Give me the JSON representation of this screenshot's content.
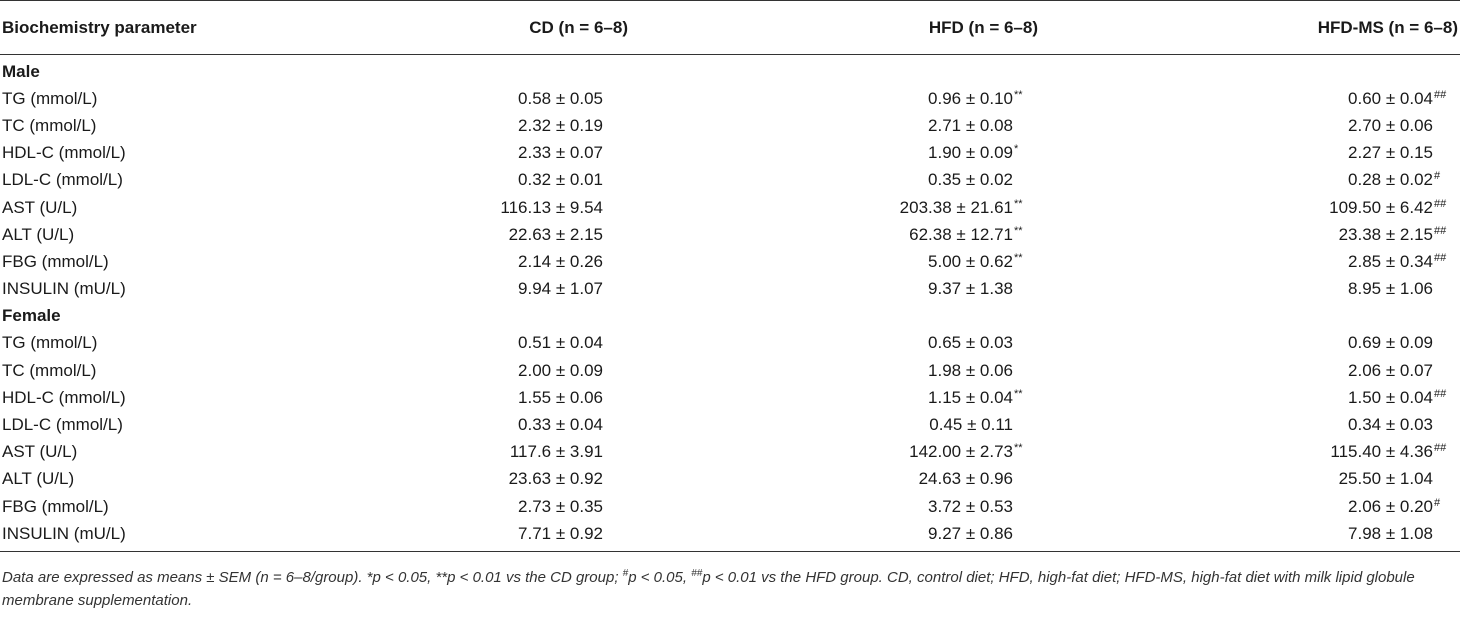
{
  "table": {
    "headers": [
      "Biochemistry parameter",
      "CD (n = 6–8)",
      "HFD (n = 6–8)",
      "HFD-MS (n = 6–8)"
    ],
    "sections": [
      {
        "label": "Male",
        "rows": [
          {
            "param": "TG (mmol/L)",
            "cd": "0.58 ± 0.05",
            "cd_m": "",
            "hfd": "0.96 ± 0.10",
            "hfd_m": "**",
            "hfdms": "0.60 ± 0.04",
            "hfdms_m": "##"
          },
          {
            "param": "TC (mmol/L)",
            "cd": "2.32 ± 0.19",
            "cd_m": "",
            "hfd": "2.71 ± 0.08",
            "hfd_m": "",
            "hfdms": "2.70 ± 0.06",
            "hfdms_m": ""
          },
          {
            "param": "HDL-C (mmol/L)",
            "cd": "2.33 ± 0.07",
            "cd_m": "",
            "hfd": "1.90 ± 0.09",
            "hfd_m": "*",
            "hfdms": "2.27 ± 0.15",
            "hfdms_m": ""
          },
          {
            "param": "LDL-C (mmol/L)",
            "cd": "0.32 ± 0.01",
            "cd_m": "",
            "hfd": "0.35 ± 0.02",
            "hfd_m": "",
            "hfdms": "0.28 ± 0.02",
            "hfdms_m": "#"
          },
          {
            "param": "AST (U/L)",
            "cd": "116.13 ± 9.54",
            "cd_m": "",
            "hfd": "203.38 ± 21.61",
            "hfd_m": "**",
            "hfdms": "109.50 ± 6.42",
            "hfdms_m": "##"
          },
          {
            "param": "ALT (U/L)",
            "cd": "22.63 ± 2.15",
            "cd_m": "",
            "hfd": "62.38 ± 12.71",
            "hfd_m": "**",
            "hfdms": "23.38 ± 2.15",
            "hfdms_m": "##"
          },
          {
            "param": "FBG (mmol/L)",
            "cd": "2.14 ± 0.26",
            "cd_m": "",
            "hfd": "5.00 ± 0.62",
            "hfd_m": "**",
            "hfdms": "2.85 ± 0.34",
            "hfdms_m": "##"
          },
          {
            "param": "INSULIN (mU/L)",
            "cd": "9.94 ± 1.07",
            "cd_m": "",
            "hfd": "9.37 ± 1.38",
            "hfd_m": "",
            "hfdms": "8.95 ± 1.06",
            "hfdms_m": ""
          }
        ]
      },
      {
        "label": "Female",
        "rows": [
          {
            "param": "TG (mmol/L)",
            "cd": "0.51 ± 0.04",
            "cd_m": "",
            "hfd": "0.65 ± 0.03",
            "hfd_m": "",
            "hfdms": "0.69 ± 0.09",
            "hfdms_m": ""
          },
          {
            "param": "TC (mmol/L)",
            "cd": "2.00 ± 0.09",
            "cd_m": "",
            "hfd": "1.98 ± 0.06",
            "hfd_m": "",
            "hfdms": "2.06 ± 0.07",
            "hfdms_m": ""
          },
          {
            "param": "HDL-C (mmol/L)",
            "cd": "1.55 ± 0.06",
            "cd_m": "",
            "hfd": "1.15 ± 0.04",
            "hfd_m": "**",
            "hfdms": "1.50 ± 0.04",
            "hfdms_m": "##"
          },
          {
            "param": "LDL-C (mmol/L)",
            "cd": "0.33 ± 0.04",
            "cd_m": "",
            "hfd": "0.45 ± 0.11",
            "hfd_m": "",
            "hfdms": "0.34 ± 0.03",
            "hfdms_m": ""
          },
          {
            "param": "AST (U/L)",
            "cd": "117.6 ± 3.91",
            "cd_m": "",
            "hfd": "142.00 ± 2.73",
            "hfd_m": "**",
            "hfdms": "115.40 ± 4.36",
            "hfdms_m": "##"
          },
          {
            "param": "ALT (U/L)",
            "cd": "23.63 ± 0.92",
            "cd_m": "",
            "hfd": "24.63 ± 0.96",
            "hfd_m": "",
            "hfdms": "25.50 ± 1.04",
            "hfdms_m": ""
          },
          {
            "param": "FBG (mmol/L)",
            "cd": "2.73 ± 0.35",
            "cd_m": "",
            "hfd": "3.72 ± 0.53",
            "hfd_m": "",
            "hfdms": "2.06 ± 0.20",
            "hfdms_m": "#"
          },
          {
            "param": "INSULIN (mU/L)",
            "cd": "7.71 ± 0.92",
            "cd_m": "",
            "hfd": "9.27 ± 0.86",
            "hfd_m": "",
            "hfdms": "7.98 ± 1.08",
            "hfdms_m": ""
          }
        ]
      }
    ]
  },
  "footnote": {
    "part1": "Data are expressed as means ± SEM (n = 6–8/group). *p < 0.05, **p < 0.01 vs the CD group; ",
    "sup1": "#",
    "part2": "p < 0.05, ",
    "sup2": "##",
    "part3": "p < 0.01 vs the HFD group. CD, control diet; HFD, high-fat diet; HFD-MS, high-fat diet with milk lipid globule membrane supplementation."
  }
}
